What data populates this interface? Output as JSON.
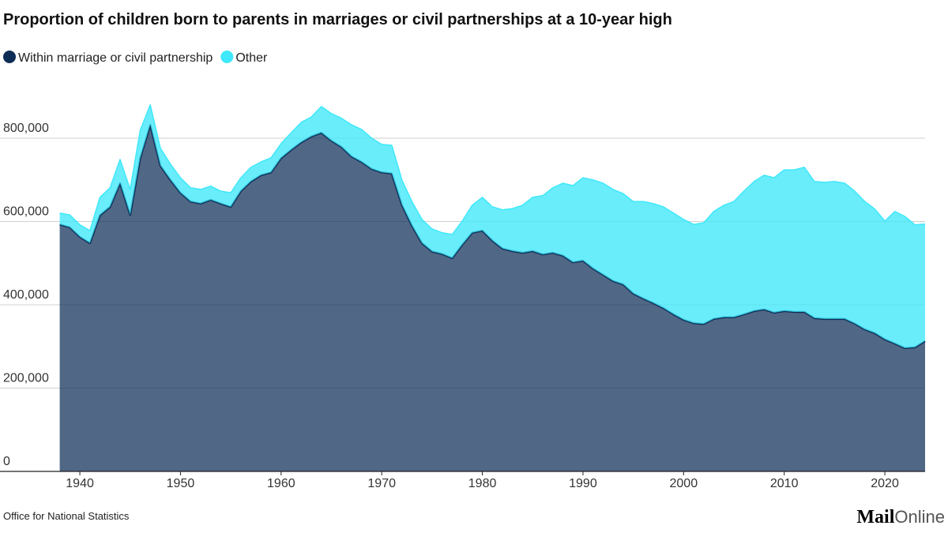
{
  "chart_data": {
    "type": "stacked-area",
    "title": "Proportion of children born to parents in marriages or civil partnerships at a 10-year high",
    "source": "Office for National Statistics",
    "logo": [
      "Mail",
      "Online"
    ],
    "x": [
      1938,
      1939,
      1940,
      1941,
      1942,
      1943,
      1944,
      1945,
      1946,
      1947,
      1948,
      1949,
      1950,
      1951,
      1952,
      1953,
      1954,
      1955,
      1956,
      1957,
      1958,
      1959,
      1960,
      1961,
      1962,
      1963,
      1964,
      1965,
      1966,
      1967,
      1968,
      1969,
      1970,
      1971,
      1972,
      1973,
      1974,
      1975,
      1976,
      1977,
      1978,
      1979,
      1980,
      1981,
      1982,
      1983,
      1984,
      1985,
      1986,
      1987,
      1988,
      1989,
      1990,
      1991,
      1992,
      1993,
      1994,
      1995,
      1996,
      1997,
      1998,
      1999,
      2000,
      2001,
      2002,
      2003,
      2004,
      2005,
      2006,
      2007,
      2008,
      2009,
      2010,
      2011,
      2012,
      2013,
      2014,
      2015,
      2016,
      2017,
      2018,
      2019,
      2020,
      2021,
      2022,
      2023,
      2024
    ],
    "series": [
      {
        "name": "Within marriage or civil partnership",
        "color": "#0d2d57",
        "values": [
          593000,
          586000,
          563000,
          548000,
          615000,
          635000,
          692000,
          616000,
          752000,
          832000,
          734000,
          700000,
          669000,
          648000,
          643000,
          652000,
          643000,
          635000,
          673000,
          696000,
          711000,
          718000,
          752000,
          772000,
          790000,
          804000,
          813000,
          794000,
          779000,
          756000,
          743000,
          726000,
          718000,
          715000,
          640000,
          590000,
          548000,
          528000,
          522000,
          512000,
          544000,
          573000,
          578000,
          554000,
          535000,
          529000,
          525000,
          529000,
          521000,
          525000,
          518000,
          502000,
          506000,
          487000,
          472000,
          457000,
          449000,
          427000,
          415000,
          404000,
          392000,
          377000,
          364000,
          356000,
          354000,
          366000,
          370000,
          370000,
          377000,
          385000,
          389000,
          381000,
          385000,
          383000,
          383000,
          368000,
          366000,
          366000,
          366000,
          355000,
          341000,
          332000,
          317000,
          307000,
          296000,
          298000,
          313000
        ]
      },
      {
        "name": "Other",
        "color": "#3fe8fa",
        "values": [
          27000,
          30000,
          29000,
          30000,
          43000,
          46000,
          57000,
          61000,
          67000,
          48000,
          42000,
          38000,
          36000,
          33000,
          34000,
          33000,
          30000,
          34000,
          32000,
          34000,
          32000,
          35000,
          35000,
          41000,
          48000,
          47000,
          63000,
          65000,
          69000,
          76000,
          78000,
          74000,
          67000,
          68000,
          60000,
          58000,
          57000,
          54000,
          51000,
          57000,
          57000,
          66000,
          80000,
          81000,
          93000,
          102000,
          114000,
          129000,
          141000,
          156000,
          174000,
          184000,
          199000,
          213000,
          220000,
          220000,
          218000,
          221000,
          233000,
          239000,
          243000,
          243000,
          241000,
          237000,
          243000,
          258000,
          269000,
          278000,
          296000,
          311000,
          322000,
          324000,
          339000,
          341000,
          347000,
          328000,
          328000,
          330000,
          326000,
          318000,
          307000,
          298000,
          284000,
          317000,
          316000,
          294000,
          281000
        ]
      }
    ],
    "xlim": [
      1938,
      2024
    ],
    "xticks": [
      1940,
      1950,
      1960,
      1970,
      1980,
      1990,
      2000,
      2010,
      2020
    ],
    "ylim": [
      0,
      900000
    ],
    "yticks": [
      0,
      {
        "value": 200000,
        "label": "200,000"
      },
      {
        "value": 400000,
        "label": "400,000"
      },
      {
        "value": 600000,
        "label": "600,000"
      },
      {
        "value": 800000,
        "label": "800,000"
      }
    ],
    "grid": true,
    "legend": "top-left"
  }
}
